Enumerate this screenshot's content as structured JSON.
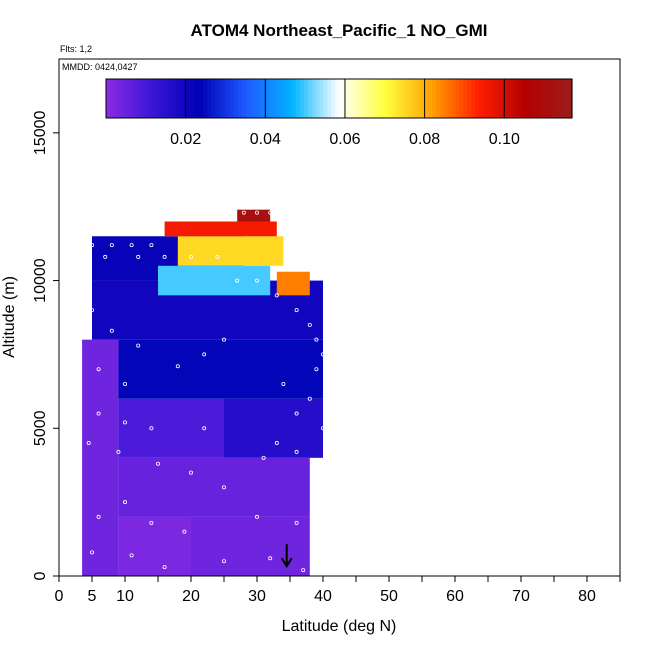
{
  "chart_data": {
    "type": "heatmap",
    "title": "ATOM4 Northeast_Pacific_1 NO_GMI",
    "flights_label": "Flts: 1,2",
    "dates_label": "MMDD: 0424,0427",
    "xlabel": "Latitude (deg N)",
    "ylabel": "Altitude (m)",
    "xlim": [
      0,
      85
    ],
    "ylim": [
      0,
      17500
    ],
    "x_ticks": [
      0,
      5,
      10,
      20,
      30,
      40,
      50,
      60,
      70,
      80
    ],
    "y_ticks": [
      0,
      5000,
      10000,
      15000
    ],
    "x_minor_ticks": [
      15,
      25,
      35,
      45,
      55,
      65,
      75,
      85
    ],
    "colorbar": {
      "range": [
        0,
        0.117
      ],
      "ticks": [
        0.02,
        0.04,
        0.06,
        0.08,
        0.1
      ],
      "tick_labels": [
        "0.02",
        "0.04",
        "0.06",
        "0.08",
        "0.10"
      ],
      "colors": [
        "#8a2be2",
        "#3a16d6",
        "#0000b4",
        "#1e5aff",
        "#00b4ff",
        "#ffffff",
        "#ffff3c",
        "#ffa000",
        "#ff1e00",
        "#b40000",
        "#9c1c1c"
      ],
      "stops": [
        0,
        0.03,
        0.017,
        0.029,
        0.042,
        0.06,
        0.07,
        0.083,
        0.097,
        0.107,
        0.117
      ]
    },
    "curtain": [
      {
        "lat": [
          3.5,
          9
        ],
        "alt": [
          0,
          8000
        ],
        "no": 0.004
      },
      {
        "lat": [
          9,
          20
        ],
        "alt": [
          0,
          2000
        ],
        "no": 0.002
      },
      {
        "lat": [
          9,
          38
        ],
        "alt": [
          2000,
          4000
        ],
        "no": 0.005
      },
      {
        "lat": [
          20,
          38
        ],
        "alt": [
          0,
          2000
        ],
        "no": 0.004
      },
      {
        "lat": [
          9,
          25
        ],
        "alt": [
          4000,
          6000
        ],
        "no": 0.009
      },
      {
        "lat": [
          25,
          40
        ],
        "alt": [
          4000,
          6000
        ],
        "no": 0.016
      },
      {
        "lat": [
          9,
          40
        ],
        "alt": [
          6000,
          8000
        ],
        "no": 0.024
      },
      {
        "lat": [
          5,
          40
        ],
        "alt": [
          8000,
          10000
        ],
        "no": 0.02
      },
      {
        "lat": [
          5,
          28
        ],
        "alt": [
          10000,
          11500
        ],
        "no": 0.022
      },
      {
        "lat": [
          15,
          32
        ],
        "alt": [
          9500,
          10500
        ],
        "no": 0.05
      },
      {
        "lat": [
          18,
          34
        ],
        "alt": [
          10500,
          11500
        ],
        "no": 0.075
      },
      {
        "lat": [
          33,
          38
        ],
        "alt": [
          9500,
          10300
        ],
        "no": 0.085
      },
      {
        "lat": [
          16,
          33
        ],
        "alt": [
          11500,
          12000
        ],
        "no": 0.095
      },
      {
        "lat": [
          27,
          32
        ],
        "alt": [
          12000,
          12400
        ],
        "no": 0.112
      }
    ],
    "sample_points": [
      {
        "lat": 5,
        "alt": 11200
      },
      {
        "lat": 8,
        "alt": 11200
      },
      {
        "lat": 11,
        "alt": 11200
      },
      {
        "lat": 14,
        "alt": 11200
      },
      {
        "lat": 7,
        "alt": 10800
      },
      {
        "lat": 12,
        "alt": 10800
      },
      {
        "lat": 16,
        "alt": 10800
      },
      {
        "lat": 20,
        "alt": 10800
      },
      {
        "lat": 24,
        "alt": 10800
      },
      {
        "lat": 28,
        "alt": 12300
      },
      {
        "lat": 30,
        "alt": 12300
      },
      {
        "lat": 32,
        "alt": 12300
      },
      {
        "lat": 27,
        "alt": 10000
      },
      {
        "lat": 30,
        "alt": 10000
      },
      {
        "lat": 33,
        "alt": 9500
      },
      {
        "lat": 36,
        "alt": 9000
      },
      {
        "lat": 38,
        "alt": 8500
      },
      {
        "lat": 39,
        "alt": 8000
      },
      {
        "lat": 40,
        "alt": 7500
      },
      {
        "lat": 39,
        "alt": 7000
      },
      {
        "lat": 34,
        "alt": 6500
      },
      {
        "lat": 38,
        "alt": 6000
      },
      {
        "lat": 36,
        "alt": 5500
      },
      {
        "lat": 40,
        "alt": 5000
      },
      {
        "lat": 33,
        "alt": 4500
      },
      {
        "lat": 36,
        "alt": 4200
      },
      {
        "lat": 31,
        "alt": 4000
      },
      {
        "lat": 5,
        "alt": 9000
      },
      {
        "lat": 8,
        "alt": 8300
      },
      {
        "lat": 12,
        "alt": 7800
      },
      {
        "lat": 6,
        "alt": 7000
      },
      {
        "lat": 10,
        "alt": 6500
      },
      {
        "lat": 18,
        "alt": 7100
      },
      {
        "lat": 22,
        "alt": 7500
      },
      {
        "lat": 25,
        "alt": 8000
      },
      {
        "lat": 6,
        "alt": 5500
      },
      {
        "lat": 10,
        "alt": 5200
      },
      {
        "lat": 14,
        "alt": 5000
      },
      {
        "lat": 22,
        "alt": 5000
      },
      {
        "lat": 4.5,
        "alt": 4500
      },
      {
        "lat": 9,
        "alt": 4200
      },
      {
        "lat": 15,
        "alt": 3800
      },
      {
        "lat": 20,
        "alt": 3500
      },
      {
        "lat": 25,
        "alt": 3000
      },
      {
        "lat": 10,
        "alt": 2500
      },
      {
        "lat": 6,
        "alt": 2000
      },
      {
        "lat": 14,
        "alt": 1800
      },
      {
        "lat": 19,
        "alt": 1500
      },
      {
        "lat": 30,
        "alt": 2000
      },
      {
        "lat": 36,
        "alt": 1800
      },
      {
        "lat": 5,
        "alt": 800
      },
      {
        "lat": 11,
        "alt": 700
      },
      {
        "lat": 16,
        "alt": 300
      },
      {
        "lat": 25,
        "alt": 500
      },
      {
        "lat": 32,
        "alt": 600
      },
      {
        "lat": 37,
        "alt": 200
      }
    ],
    "arrow_marker": {
      "lat": 34.5,
      "alt": 400
    },
    "grid": false
  }
}
